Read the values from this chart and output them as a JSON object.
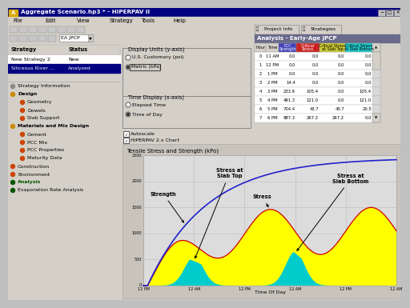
{
  "title_bar": "Aggregate Scenario.hp3 * - HIPERPAV II",
  "analysis_title": "Analysis - Early-Age JPCP",
  "strategy_label": "EA JPCP",
  "strategies": [
    [
      "New Strategy 2",
      "New"
    ],
    [
      "Siliceous River ...",
      "Analyzed"
    ]
  ],
  "display_units_label": "Display Units (y-axis)",
  "radio1": "U.S. Customary (psi)",
  "radio2": "Metric (kPa)",
  "time_display_label": "Time Display (x-axis)",
  "radio3": "Elapsed Time",
  "radio4": "Time of Day",
  "check1": "Autoscale",
  "check2": "HIPERPAV 2.x Chart",
  "table_headers": [
    "Hour",
    "Time",
    "PCC\nStrength",
    "Critical\nStress",
    "Critical Stress\nat Slab Top",
    "Critical Stress\nat Slab Bottom"
  ],
  "table_header_colors": [
    "#d4d0c8",
    "#d4d0c8",
    "#4444bb",
    "#cc2222",
    "#cccc22",
    "#22cccc"
  ],
  "table_data": [
    [
      0,
      "11 AM",
      0.0,
      0.0,
      0.0,
      0.0
    ],
    [
      1,
      "12 PM",
      0.0,
      0.0,
      0.0,
      0.0
    ],
    [
      2,
      "1 PM",
      0.0,
      0.0,
      0.0,
      0.0
    ],
    [
      3,
      "2 PM",
      14.4,
      0.0,
      0.0,
      0.0
    ],
    [
      4,
      "3 PM",
      233.9,
      105.4,
      0.0,
      105.4
    ],
    [
      5,
      "4 PM",
      491.3,
      121.0,
      0.0,
      121.0
    ],
    [
      6,
      "5 PM",
      704.4,
      43.7,
      43.7,
      20.5
    ],
    [
      7,
      "6 PM",
      887.3,
      267.2,
      267.2,
      0.0
    ]
  ],
  "chart_title": "Tensile Stress and Strength (kPo)",
  "chart_xlabel": "Time Of Day",
  "chart_xticks": [
    "12 PM",
    "12 AM",
    "12 PM",
    "12 AM",
    "12 PM",
    "12 AM"
  ],
  "chart_yticks": [
    0,
    500,
    1000,
    1500,
    2000,
    2500
  ],
  "ymax": 2500,
  "bg_color": "#c0c0c0",
  "panel_bg": "#d4d0c8",
  "title_bar_color": "#000080"
}
